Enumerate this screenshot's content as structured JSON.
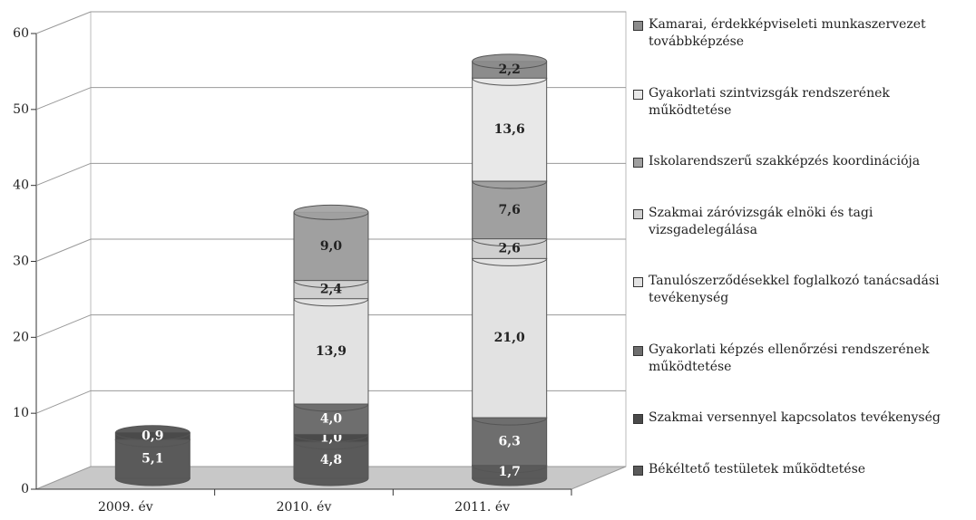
{
  "chart_data": {
    "type": "bar3d_stacked",
    "categories": [
      "2009. év",
      "2010. év",
      "2011. év"
    ],
    "series": [
      {
        "name": "Békéltető testületek működtetése",
        "color": "#5a5a5a",
        "values": [
          5.1,
          4.8,
          1.7
        ],
        "value_labels": [
          "5,1",
          "4,8",
          "1,7"
        ]
      },
      {
        "name": "Szakmai versennyel kapcsolatos tevékenység",
        "color": "#4a4a4a",
        "values": [
          0.9,
          1.0,
          null
        ],
        "value_labels": [
          "0,9",
          "1,0",
          null
        ]
      },
      {
        "name": "Gyakorlati képzés ellenőrzési rendszerének működtetése",
        "color": "#6e6e6e",
        "values": [
          null,
          4.0,
          6.3
        ],
        "value_labels": [
          null,
          "4,0",
          "6,3"
        ]
      },
      {
        "name": "Tanulószerződésekkel foglalkozó tanácsadási tevékenység",
        "color": "#e2e2e2",
        "values": [
          null,
          13.9,
          21.0
        ],
        "value_labels": [
          null,
          "13,9",
          "21,0"
        ]
      },
      {
        "name": "Szakmai záróvizsgák elnöki és tagi vizsgadelegálása",
        "color": "#cfcfcf",
        "values": [
          null,
          2.4,
          2.6
        ],
        "value_labels": [
          null,
          "2,4",
          "2,6"
        ]
      },
      {
        "name": "Iskolarendszerű szakképzés koordinációja",
        "color": "#a0a0a0",
        "values": [
          null,
          9.0,
          7.6
        ],
        "value_labels": [
          null,
          "9,0",
          "7,6"
        ]
      },
      {
        "name": "Gyakorlati szintvizsgák rendszerének működtetése",
        "color": "#e8e8e8",
        "values": [
          null,
          null,
          13.6
        ],
        "value_labels": [
          null,
          null,
          "13,6"
        ]
      },
      {
        "name": "Kamarai, érdekképviseleti munkaszervezet továbbképzése",
        "color": "#8c8c8c",
        "values": [
          null,
          null,
          2.2
        ],
        "value_labels": [
          null,
          null,
          "2,2"
        ]
      }
    ],
    "ylim": [
      0,
      60
    ],
    "yticks": [
      0,
      10,
      20,
      30,
      40,
      50,
      60
    ],
    "grid": true,
    "legend": "right"
  }
}
